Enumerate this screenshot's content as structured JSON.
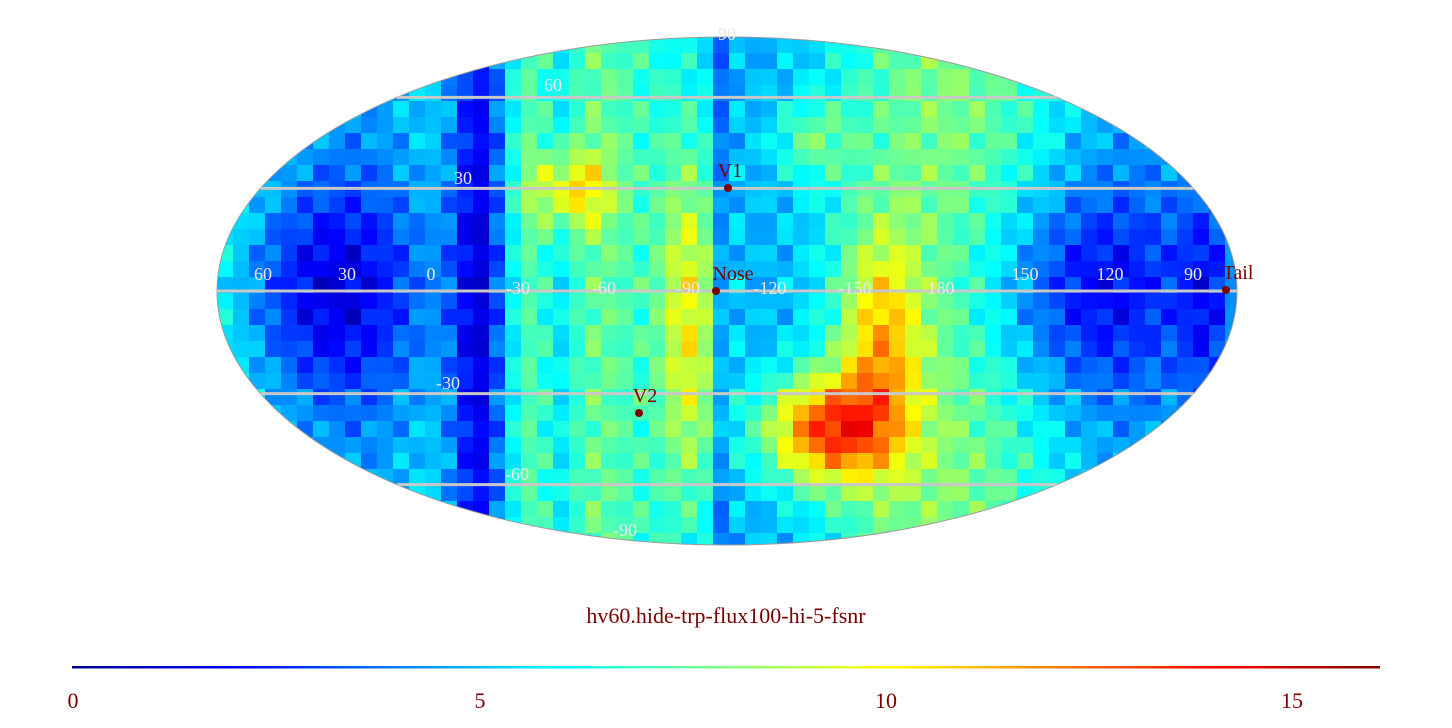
{
  "title": "hv60.hide-trp-flux100-hi-5-fsnr",
  "projection": "mollweide",
  "colormap": "jet",
  "colors": {
    "text": "#7a0000",
    "grid": "#c8c8c8",
    "markers": "#7a0000"
  },
  "lat_grid_labels": [
    "90",
    "60",
    "30",
    "-30",
    "-60",
    "-90"
  ],
  "lon_grid_labels": [
    "60",
    "30",
    "0",
    "-30",
    "-60",
    "-90",
    "-120",
    "-150",
    "180",
    "150",
    "120",
    "90"
  ],
  "markers": [
    {
      "label": "V1"
    },
    {
      "label": "Nose"
    },
    {
      "label": "V2"
    },
    {
      "label": "Tail"
    }
  ],
  "colorbar": {
    "min": 0,
    "max": 16,
    "ticks": [
      "0",
      "5",
      "10",
      "15"
    ]
  }
}
